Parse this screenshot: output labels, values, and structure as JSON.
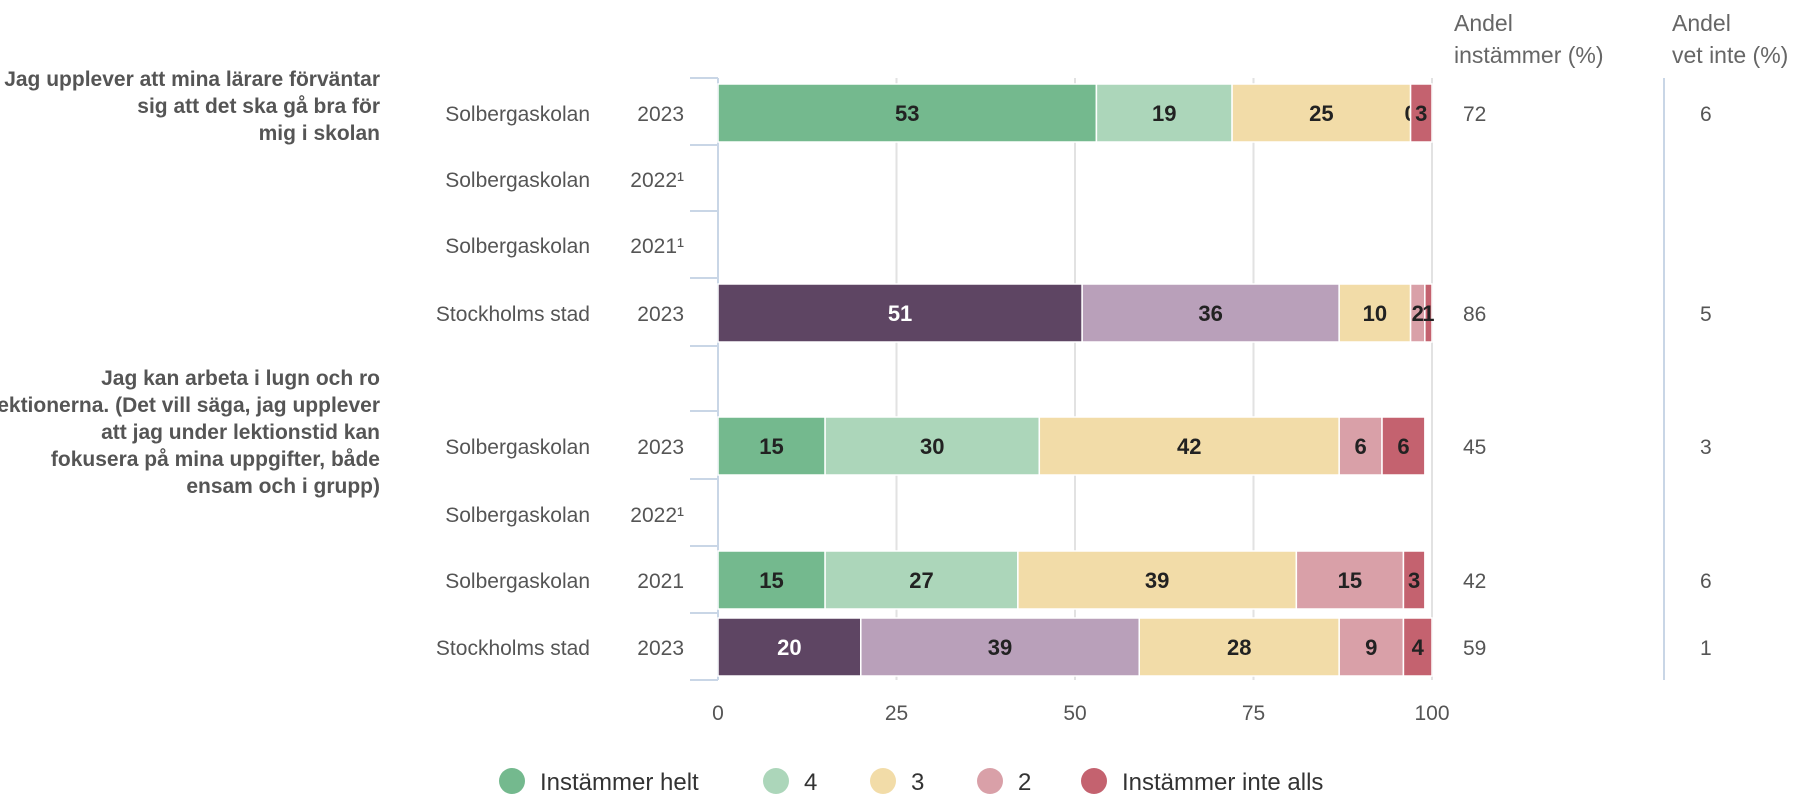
{
  "chart_data": {
    "type": "bar",
    "orientation": "horizontal",
    "stacked": true,
    "xlim": [
      0,
      100
    ],
    "xticks": [
      "0",
      "25",
      "50",
      "75",
      "100"
    ],
    "grid": true,
    "legend_position": "bottom",
    "stat_headers": [
      "Andel instämmer (%)",
      "Andel vet inte (%)"
    ],
    "legend": [
      {
        "label": "Instämmer helt",
        "color": "#74b98e"
      },
      {
        "label": "4",
        "color": "#acd6ba"
      },
      {
        "label": "3",
        "color": "#f2dca8"
      },
      {
        "label": "2",
        "color": "#d9a0a8"
      },
      {
        "label": "Instämmer inte alls",
        "color": "#c4626f"
      }
    ],
    "city_colors": [
      "#5e4563",
      "#b9a0ba",
      "#f2dca8",
      "#d9a0a8",
      "#c4626f"
    ],
    "questions": [
      {
        "label": "Jag upplever att mina lärare förväntar sig att det ska gå bra för mig i skolan",
        "rows": [
          {
            "unit": "Solbergaskolan",
            "year": "2023",
            "values": [
              53,
              19,
              25,
              0,
              3
            ],
            "instammer": "72",
            "vet_inte": "6"
          },
          {
            "unit": "Solbergaskolan",
            "year": "2022¹",
            "values": null,
            "instammer": "",
            "vet_inte": ""
          },
          {
            "unit": "Solbergaskolan",
            "year": "2021¹",
            "values": null,
            "instammer": "",
            "vet_inte": ""
          },
          {
            "unit": "Stockholms stad",
            "year": "2023",
            "values": [
              51,
              36,
              10,
              2,
              1
            ],
            "instammer": "86",
            "vet_inte": "5"
          }
        ]
      },
      {
        "label": "Jag kan arbeta i lugn och ro på lektionerna. (Det vill säga, jag upplever att jag under lektionstid kan fokusera på mina uppgifter, både ensam och i grupp)",
        "rows": [
          {
            "unit": "Solbergaskolan",
            "year": "2023",
            "values": [
              15,
              30,
              42,
              6,
              6
            ],
            "instammer": "45",
            "vet_inte": "3"
          },
          {
            "unit": "Solbergaskolan",
            "year": "2022¹",
            "values": null,
            "instammer": "",
            "vet_inte": ""
          },
          {
            "unit": "Solbergaskolan",
            "year": "2021",
            "values": [
              15,
              27,
              39,
              15,
              3
            ],
            "instammer": "42",
            "vet_inte": "6"
          },
          {
            "unit": "Stockholms stad",
            "year": "2023",
            "values": [
              20,
              39,
              28,
              9,
              4
            ],
            "instammer": "59",
            "vet_inte": "1"
          }
        ]
      }
    ]
  }
}
